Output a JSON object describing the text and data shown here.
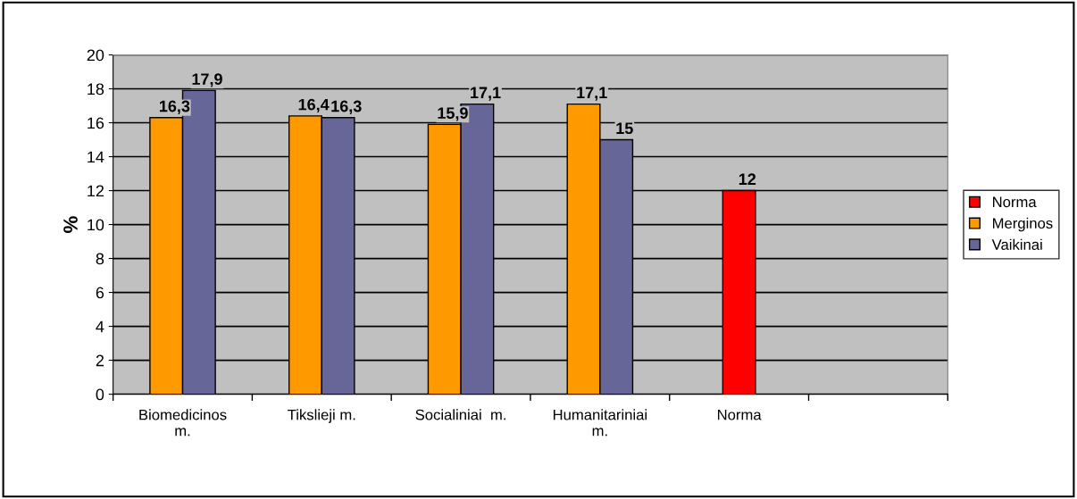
{
  "chart_data": {
    "type": "bar",
    "ylabel": "%",
    "categories": [
      "Biomedicinos\nm.",
      "Tikslieji m.",
      "Socialiniai  m.",
      "Humanitariniai\nm.",
      "Norma",
      null
    ],
    "series": [
      {
        "name": "Norma",
        "color": "#ff0000",
        "values": [
          null,
          null,
          null,
          null,
          12,
          null
        ],
        "value_labels": [
          null,
          null,
          null,
          null,
          "12",
          null
        ]
      },
      {
        "name": "Merginos",
        "color": "#ff9900",
        "values": [
          16.3,
          16.4,
          15.9,
          17.1,
          null,
          null
        ],
        "value_labels": [
          "16,3",
          "16,4",
          "15,9",
          "17,1",
          null,
          null
        ]
      },
      {
        "name": "Vaikinai",
        "color": "#666699",
        "values": [
          17.9,
          16.3,
          17.1,
          15,
          null,
          null
        ],
        "value_labels": [
          "17,9",
          "16,3",
          "17,1",
          "15",
          null,
          null
        ]
      }
    ],
    "ylim": [
      0,
      20
    ],
    "yticks": [
      0,
      2,
      4,
      6,
      8,
      10,
      12,
      14,
      16,
      18,
      20
    ],
    "grid": "y",
    "legend": "right"
  }
}
